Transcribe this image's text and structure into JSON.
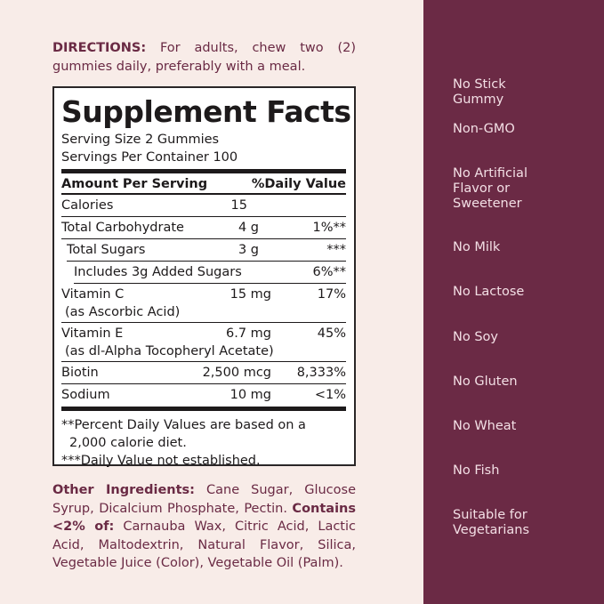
{
  "directions": {
    "label": "DIRECTIONS:",
    "text": " For adults, chew two (2) gummies daily, preferably with a meal."
  },
  "facts": {
    "title": "Supplement Facts",
    "serving_size": "Serving Size 2 Gummies",
    "servings_per_container": "Servings Per Container 100",
    "header": {
      "amount": "Amount Per Serving",
      "dv": "%Daily Value"
    },
    "rows": [
      {
        "name": "Calories",
        "amount": "15",
        "dv": ""
      },
      {
        "name": "Total Carbohydrate",
        "amount": "4 g",
        "dv": "1%**"
      },
      {
        "name": "Total Sugars",
        "amount": "3 g",
        "dv": "***"
      },
      {
        "name": "Includes 3g Added Sugars",
        "amount": "",
        "dv": "6%**"
      },
      {
        "name": "Vitamin C",
        "sub": "(as Ascorbic Acid)",
        "amount": "15 mg",
        "dv": "17%"
      },
      {
        "name": "Vitamin E",
        "sub": "(as dl-Alpha Tocopheryl Acetate)",
        "amount": "6.7 mg",
        "dv": "45%"
      },
      {
        "name": "Biotin",
        "amount": "2,500 mcg",
        "dv": "8,333%"
      },
      {
        "name": "Sodium",
        "amount": "10 mg",
        "dv": "<1%"
      }
    ],
    "footnotes": [
      "**Percent Daily Values are based on a",
      "2,000 calorie diet.",
      "***Daily Value not established."
    ]
  },
  "ingredients": {
    "label": "Other Ingredients:",
    "text": " Cane Sugar, Glucose Syrup, Dicalcium Phosphate, Pectin. ",
    "contains_label": "Contains <2% of:",
    "contains_text": " Carnauba Wax, Citric Acid, Lactic Acid, Maltodextrin, Natural Flavor, Silica, Vegetable Juice (Color), Vegetable Oil (Palm)."
  },
  "claims": [
    "No Stick Gummy",
    "Non-GMO",
    "No Artificial Flavor or Sweetener",
    "No Milk",
    "No Lactose",
    "No Soy",
    "No Gluten",
    "No Wheat",
    "No Fish",
    "Suitable for Vegetarians"
  ],
  "colors": {
    "background": "#f8ece8",
    "panel": "#6b2a45",
    "accent_text": "#6a2a44",
    "claim_text": "#f3dfe5"
  }
}
